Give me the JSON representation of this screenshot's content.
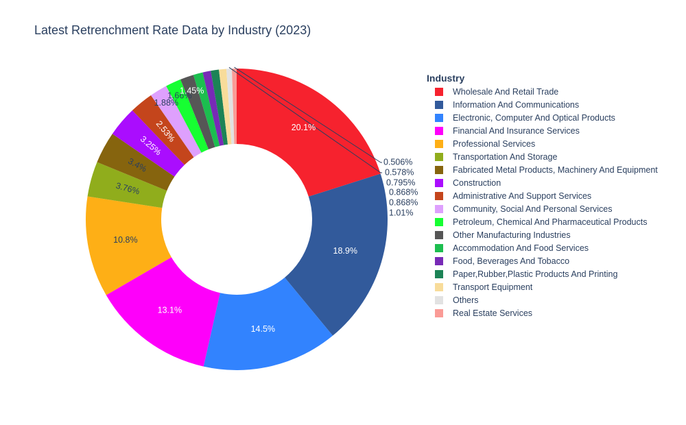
{
  "chart_data": {
    "type": "pie",
    "hole": true,
    "title": "Latest Retrenchment Rate Data by Industry (2023)",
    "legend_title": "Industry",
    "legend_position": "right",
    "labels": [
      "Wholesale And Retail Trade",
      "Information And Communications",
      "Electronic, Computer And Optical Products",
      "Financial And Insurance Services",
      "Professional Services",
      "Transportation And Storage",
      "Fabricated Metal Products, Machinery And Equipment",
      "Construction",
      "Administrative And Support Services",
      "Community, Social And Personal Services",
      "Petroleum, Chemical And Pharmaceutical Products",
      "Other Manufacturing Industries",
      "Accommodation And Food Services",
      "Food, Beverages And Tobacco",
      "Paper,Rubber,Plastic Products And Printing",
      "Transport Equipment",
      "Others",
      "Real Estate Services"
    ],
    "values": [
      20.1,
      18.9,
      14.5,
      13.1,
      10.8,
      3.76,
      3.4,
      3.25,
      2.53,
      1.88,
      1.66,
      1.45,
      1.01,
      0.868,
      0.868,
      0.795,
      0.578,
      0.506
    ],
    "value_labels": [
      "20.1%",
      "18.9%",
      "14.5%",
      "13.1%",
      "10.8%",
      "3.76%",
      "3.4%",
      "3.25%",
      "2.53%",
      "1.88%",
      "1.66%",
      "1.45%",
      "1.01%",
      "0.868%",
      "0.868%",
      "0.795%",
      "0.578%",
      "0.506%"
    ],
    "colors": [
      "#F6222E",
      "#325A9B",
      "#3283FE",
      "#FE00FA",
      "#FEAF16",
      "#90AD1C",
      "#86640E",
      "#AA0DFE",
      "#C4451C",
      "#DEA0FD",
      "#16FF32",
      "#565656",
      "#1CBE4F",
      "#782AB6",
      "#1C8356",
      "#F8DC9A",
      "#E2E2E2",
      "#FA9B96"
    ],
    "label_colors": [
      "#ffffff",
      "#ffffff",
      "#ffffff",
      "#ffffff",
      "#2a3f5f",
      "#2a3f5f",
      "#2a3f5f",
      "#ffffff",
      "#ffffff",
      "#2a3f5f",
      "#2a3f5f",
      "#ffffff",
      "#2a3f5f",
      "#2a3f5f",
      "#2a3f5f",
      "#2a3f5f",
      "#2a3f5f",
      "#2a3f5f"
    ]
  }
}
